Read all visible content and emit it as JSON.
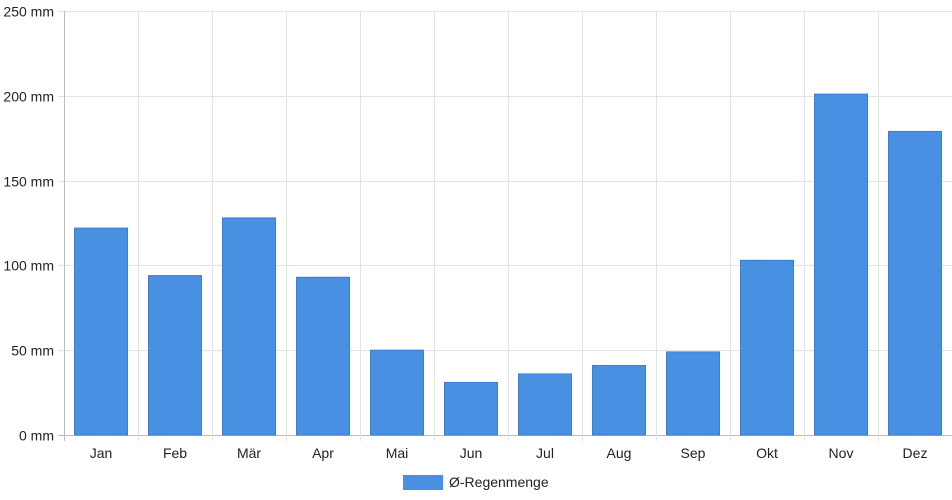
{
  "chart_data": {
    "type": "bar",
    "title": "",
    "xlabel": "",
    "ylabel": "",
    "categories": [
      "Jan",
      "Feb",
      "Mär",
      "Apr",
      "Mai",
      "Jun",
      "Jul",
      "Aug",
      "Sep",
      "Okt",
      "Nov",
      "Dez"
    ],
    "series": [
      {
        "name": "Ø-Regenmenge",
        "values": [
          122,
          94,
          128,
          93,
          50,
          31,
          36,
          41,
          49,
          103,
          201,
          179
        ],
        "color": "#4a90e2"
      }
    ],
    "ylim": [
      0,
      250
    ],
    "yticks": [
      0,
      50,
      100,
      150,
      200,
      250
    ],
    "ytick_unit": "mm",
    "grid": true,
    "legend_position": "bottom-center"
  }
}
